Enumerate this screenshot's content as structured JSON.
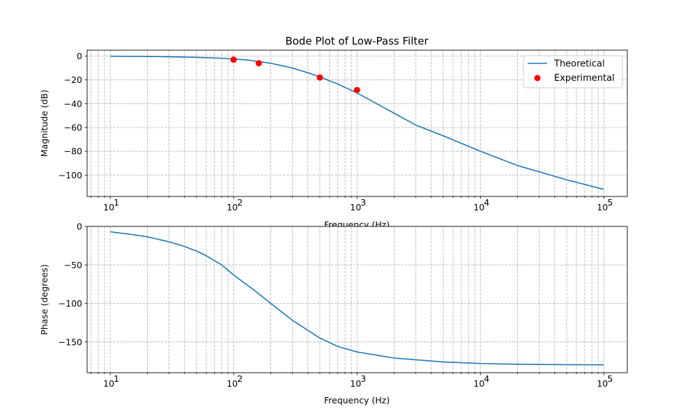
{
  "chart_data": [
    {
      "type": "line",
      "title": "Bode Plot of Low-Pass Filter",
      "xlabel": "Frequency (Hz)",
      "ylabel": "Magnitude (dB)",
      "xscale": "log",
      "xlim": [
        6.5,
        155000
      ],
      "ylim": [
        -118,
        5
      ],
      "x_ticks": [
        10,
        100,
        1000,
        10000,
        100000
      ],
      "x_tick_labels": [
        [
          "10",
          "1"
        ],
        [
          "10",
          "2"
        ],
        [
          "10",
          "3"
        ],
        [
          "10",
          "4"
        ],
        [
          "10",
          "5"
        ]
      ],
      "y_ticks": [
        0,
        -20,
        -40,
        -60,
        -80,
        -100
      ],
      "y_tick_labels": [
        "0",
        "−20",
        "−40",
        "−60",
        "−80",
        "−100"
      ],
      "grid": true,
      "legend": {
        "position": "upper right",
        "entries": [
          "Theoretical",
          "Experimental"
        ]
      },
      "series": [
        {
          "name": "Theoretical",
          "kind": "line",
          "color": "#1f77b4",
          "x": [
            10,
            20,
            40,
            60,
            80,
            100,
            130,
            160,
            200,
            300,
            400,
            500,
            700,
            1000,
            2000,
            3000,
            5000,
            10000,
            20000,
            50000,
            100000
          ],
          "y": [
            -0.08,
            -0.3,
            -0.8,
            -1.3,
            -1.8,
            -2.4,
            -3.3,
            -4.6,
            -6.0,
            -10.0,
            -14.0,
            -17.5,
            -23.5,
            -31.0,
            -48.0,
            -58.0,
            -67.0,
            -80.0,
            -92.0,
            -104.0,
            -112.0
          ]
        },
        {
          "name": "Experimental",
          "kind": "scatter",
          "color": "#ff0000",
          "x": [
            100,
            160,
            500,
            1000
          ],
          "y": [
            -3,
            -6,
            -18,
            -28.5
          ]
        }
      ]
    },
    {
      "type": "line",
      "title": "",
      "xlabel": "Frequency (Hz)",
      "ylabel": "Phase (degrees)",
      "xscale": "log",
      "xlim": [
        6.5,
        155000
      ],
      "ylim": [
        -190,
        0
      ],
      "x_ticks": [
        10,
        100,
        1000,
        10000,
        100000
      ],
      "x_tick_labels": [
        [
          "10",
          "1"
        ],
        [
          "10",
          "2"
        ],
        [
          "10",
          "3"
        ],
        [
          "10",
          "4"
        ],
        [
          "10",
          "5"
        ]
      ],
      "y_ticks": [
        0,
        -50,
        -100,
        -150
      ],
      "y_tick_labels": [
        "0",
        "−50",
        "−100",
        "−150"
      ],
      "grid": true,
      "series": [
        {
          "kind": "line",
          "color": "#1f77b4",
          "x": [
            10,
            15,
            20,
            30,
            40,
            50,
            60,
            80,
            100,
            150,
            200,
            300,
            500,
            700,
            1000,
            2000,
            5000,
            10000,
            20000,
            50000,
            100000
          ],
          "y": [
            -7,
            -10.5,
            -13.5,
            -20,
            -26,
            -32,
            -38,
            -50,
            -63,
            -84,
            -100,
            -122,
            -145,
            -156,
            -163,
            -171,
            -176,
            -178,
            -179,
            -179.6,
            -179.8
          ]
        }
      ]
    }
  ]
}
